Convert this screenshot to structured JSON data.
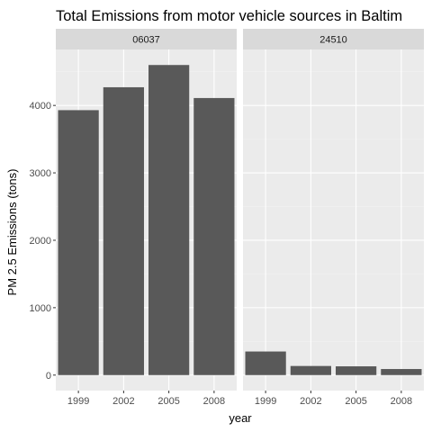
{
  "chart_data": {
    "type": "bar",
    "title": "Total Emissions from motor vehicle sources in Baltim",
    "xlabel": "year",
    "ylabel": "PM 2.5 Emissions (tons)",
    "categories": [
      "1999",
      "2002",
      "2005",
      "2008"
    ],
    "yticks": [
      0,
      1000,
      2000,
      3000,
      4000
    ],
    "yticklabels": [
      "0",
      "1000",
      "2000",
      "3000",
      "4000"
    ],
    "ylim": [
      -230,
      4830
    ],
    "grid": true,
    "facets": [
      {
        "label": "06037",
        "values": [
          3930,
          4270,
          4600,
          4110
        ]
      },
      {
        "label": "24510",
        "values": [
          350,
          135,
          130,
          90
        ]
      }
    ],
    "colors": {
      "bar": "#595959",
      "panel": "#ebebeb",
      "strip": "#d9d9d9",
      "grid_major": "#ffffff",
      "grid_minor": "#f2f2f2"
    }
  }
}
